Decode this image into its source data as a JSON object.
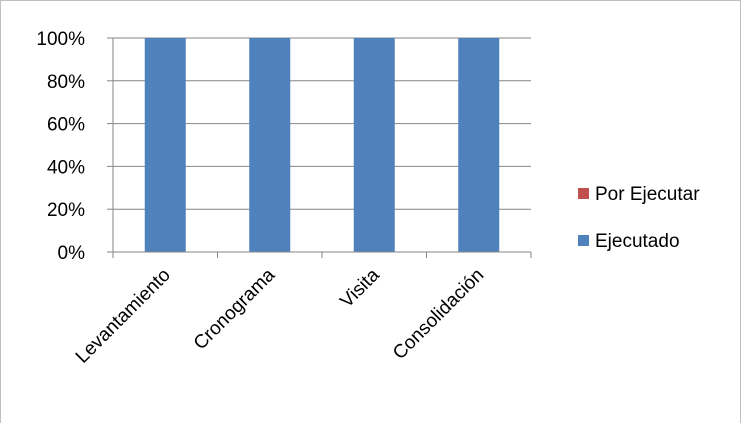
{
  "chart_data": {
    "type": "bar",
    "stacked": true,
    "percent": true,
    "categories": [
      "Levantamiento",
      "Cronograma",
      "Visita",
      "Consolidación"
    ],
    "series": [
      {
        "name": "Ejecutado",
        "values": [
          100,
          100,
          100,
          100
        ],
        "color": "#4F81BD"
      },
      {
        "name": "Por Ejecutar",
        "values": [
          0,
          0,
          0,
          0
        ],
        "color": "#C0504D"
      }
    ],
    "yticks": [
      "0%",
      "20%",
      "40%",
      "60%",
      "80%",
      "100%"
    ],
    "ylim": [
      0,
      100
    ],
    "grid": true,
    "legend_position": "right",
    "legend_order": [
      "Por Ejecutar",
      "Ejecutado"
    ]
  }
}
